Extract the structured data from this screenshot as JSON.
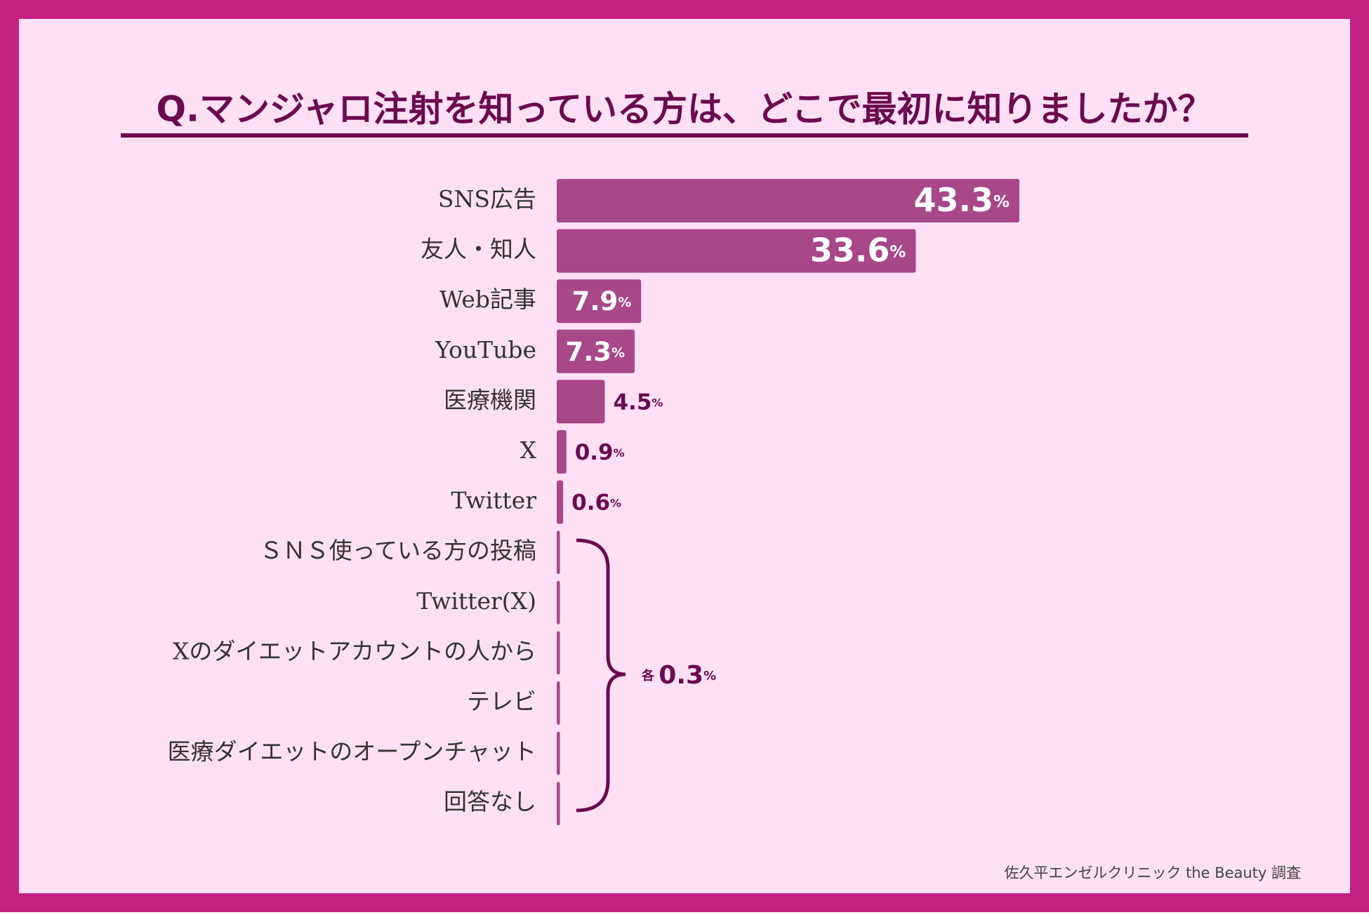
{
  "chart_data": {
    "type": "bar",
    "orientation": "horizontal",
    "title": "Q.マンジャロ注射を知っている方は、どこで最初に知りましたか？",
    "categories": [
      "SNS広告",
      "友人・知人",
      "Web記事",
      "YouTube",
      "医療機関",
      "X",
      "Twitter",
      "ＳＮＳ使っている方の投稿",
      "Twitter(X)",
      "Xのダイエットアカウントの人から",
      "テレビ",
      "医療ダイエットのオープンチャット",
      "回答なし"
    ],
    "values": [
      43.3,
      33.6,
      7.9,
      7.3,
      4.5,
      0.9,
      0.6,
      0.3,
      0.3,
      0.3,
      0.3,
      0.3,
      0.3
    ],
    "value_labels": [
      "43.3%",
      "33.6%",
      "7.9%",
      "7.3%",
      "4.5%",
      "0.9%",
      "0.6%",
      null,
      null,
      null,
      null,
      null,
      null
    ],
    "group_label": "各 0.3%",
    "color": "#a8478a",
    "source": "佐久平エンゼルクリニック the Beauty 調査"
  }
}
